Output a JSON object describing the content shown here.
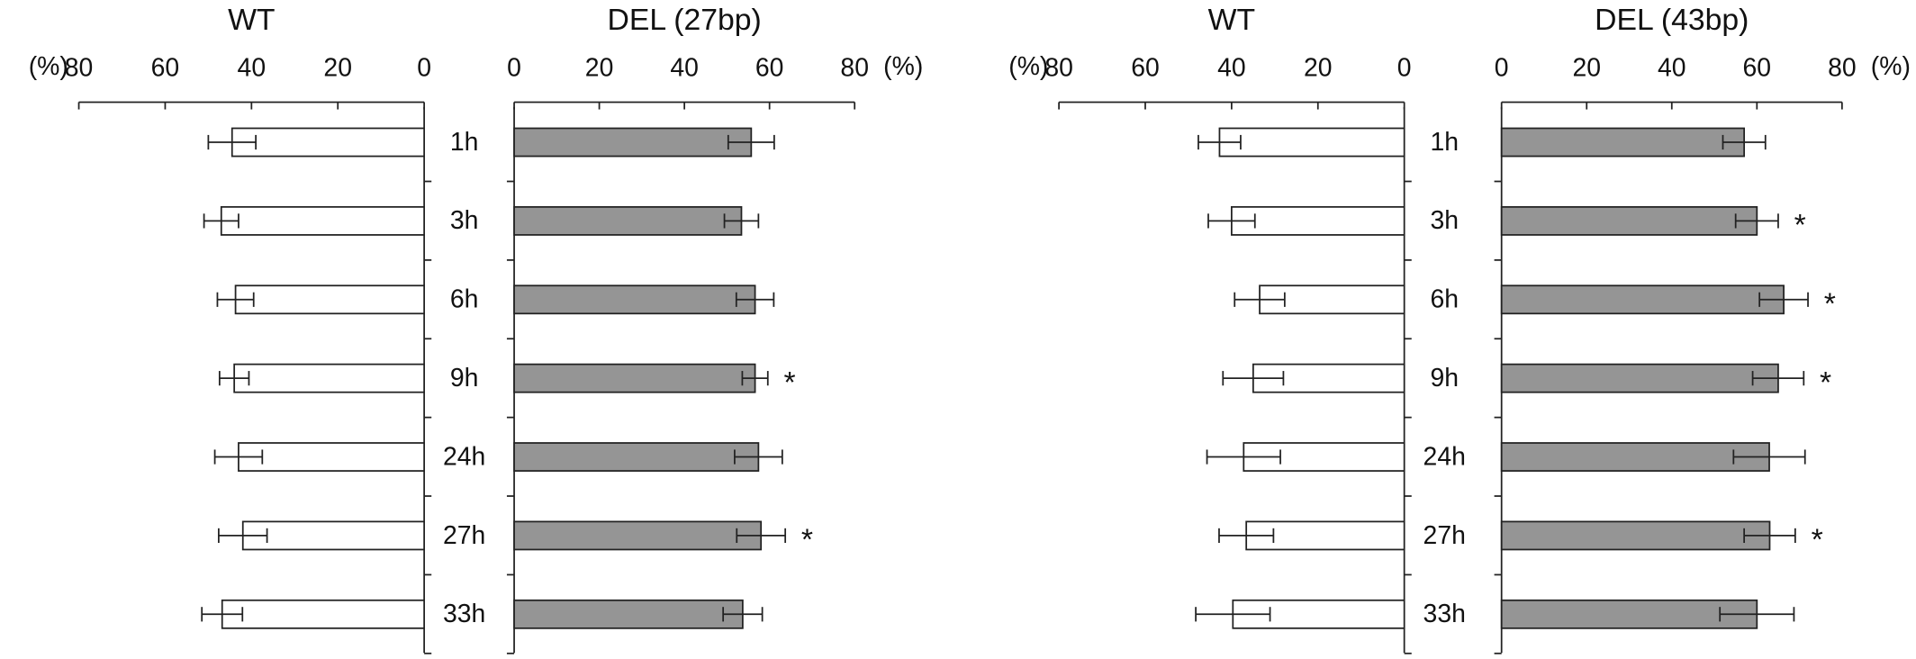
{
  "chart_data": [
    {
      "type": "bar",
      "orientation": "horizontal",
      "title": "WT",
      "x_label": "(%)",
      "xaxis_reversed": true,
      "xlim": [
        0,
        80
      ],
      "xticks": [
        0,
        20,
        40,
        60,
        80
      ],
      "color": "#ffffff",
      "categories": [
        "1h",
        "3h",
        "6h",
        "9h",
        "24h",
        "27h",
        "33h"
      ],
      "values": [
        44.5,
        47,
        43.7,
        44,
        43,
        42,
        46.8
      ],
      "errors": [
        5.5,
        4,
        4.2,
        3.4,
        5.5,
        5.6,
        4.7
      ]
    },
    {
      "type": "bar",
      "orientation": "horizontal",
      "title": "DEL (27bp)",
      "x_label": "(%)",
      "xaxis_reversed": false,
      "xlim": [
        0,
        80
      ],
      "xticks": [
        0,
        20,
        40,
        60,
        80
      ],
      "color": "#959595",
      "values": [
        55.7,
        53.4,
        56.6,
        56.6,
        57.4,
        58,
        53.7
      ],
      "errors": [
        5.4,
        4,
        4.4,
        3,
        5.6,
        5.7,
        4.6
      ],
      "annotations": [
        null,
        null,
        null,
        "*",
        null,
        "*",
        null
      ]
    },
    {
      "type": "bar",
      "orientation": "horizontal",
      "title": "WT",
      "x_label": "(%)",
      "xaxis_reversed": true,
      "xlim": [
        0,
        80
      ],
      "xticks": [
        0,
        20,
        40,
        60,
        80
      ],
      "color": "#ffffff",
      "categories": [
        "1h",
        "3h",
        "6h",
        "9h",
        "24h",
        "27h",
        "33h"
      ],
      "values": [
        42.8,
        40,
        33.5,
        35,
        37.2,
        36.6,
        39.7
      ],
      "errors": [
        4.9,
        5.4,
        5.8,
        7,
        8.5,
        6.3,
        8.6
      ]
    },
    {
      "type": "bar",
      "orientation": "horizontal",
      "title": "DEL (43bp)",
      "x_label": "(%)",
      "xaxis_reversed": false,
      "xlim": [
        0,
        80
      ],
      "xticks": [
        0,
        20,
        40,
        60,
        80
      ],
      "color": "#959595",
      "values": [
        57,
        60,
        66.3,
        65,
        62.9,
        63,
        60
      ],
      "errors": [
        5,
        5,
        5.7,
        6,
        8.4,
        6,
        8.7
      ],
      "annotations": [
        null,
        "*",
        "*",
        "*",
        null,
        "*",
        null
      ]
    }
  ]
}
